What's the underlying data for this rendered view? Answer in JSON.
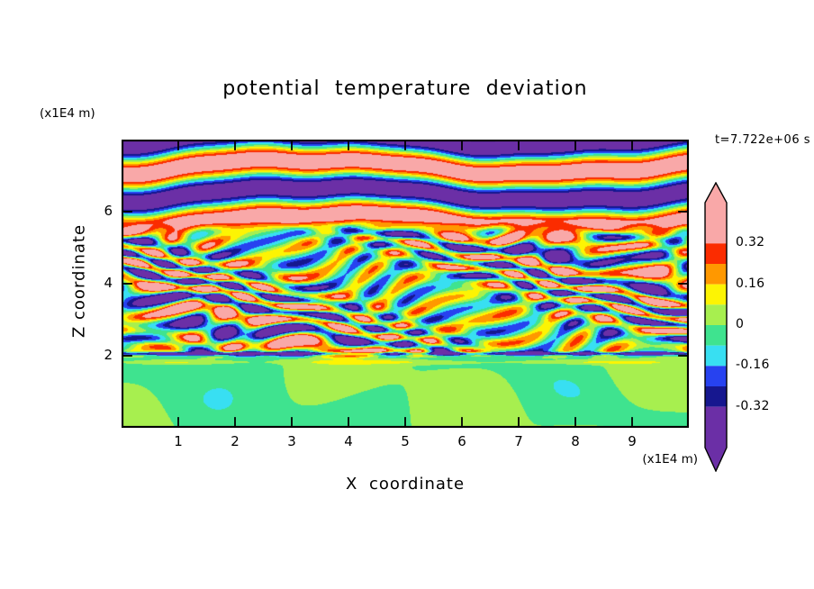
{
  "chart_data": {
    "type": "heatmap",
    "title": "potential temperature deviation",
    "timestamp": "t=7.722e+06 s",
    "xlabel": "X coordinate",
    "zlabel": "Z coordinate",
    "x_unit": "(x1E4 m)",
    "z_unit": "(x1E4 m)",
    "x_range": [
      0,
      10
    ],
    "z_range": [
      0,
      8
    ],
    "x_ticks": [
      1,
      2,
      3,
      4,
      5,
      6,
      7,
      8,
      9
    ],
    "z_ticks": [
      2,
      4,
      6
    ],
    "levels_ascending": [
      -0.32,
      -0.24,
      -0.16,
      -0.08,
      0,
      0.08,
      0.16,
      0.24,
      0.32
    ],
    "palette_low_to_high": [
      "#6B2FA6",
      "#16178F",
      "#2742F0",
      "#38DFF2",
      "#3FE38F",
      "#A7EF4F",
      "#FDF403",
      "#FF9800",
      "#FB2C00",
      "#F9A8A8"
    ],
    "colorbar": {
      "label_values": [
        0.32,
        0.16,
        0,
        -0.16,
        -0.32
      ],
      "labels": [
        "0.32",
        "0.16",
        "0",
        "-0.16",
        "-0.32"
      ],
      "value_span": [
        -0.48,
        0.48
      ],
      "arrow_ends": true,
      "position": "right"
    },
    "grid": false,
    "regions": [
      {
        "z_span": [
          0,
          2
        ],
        "description": "near-zero deviation: spring-green background with green-yellow blobs"
      },
      {
        "z_span": [
          2,
          5.6
        ],
        "description": "turbulent layer: thin horizontal streaks of red/orange/yellow and cyan/blue/navy"
      },
      {
        "z_span": [
          5.6,
          8
        ],
        "description": "stratified wavy layers alternating pink (>0.32) and purple (<-0.32) with thin rainbow transition edges"
      }
    ],
    "field_model": {
      "z_low": 2.0,
      "z_top": 5.6,
      "low_amp": 0.045,
      "low_bias": -0.01,
      "turb_amp": 0.42,
      "turb_kz": 11.5,
      "top_amp": 0.47,
      "top_wavelength": 1.5,
      "top_z0": 6.875
    }
  }
}
